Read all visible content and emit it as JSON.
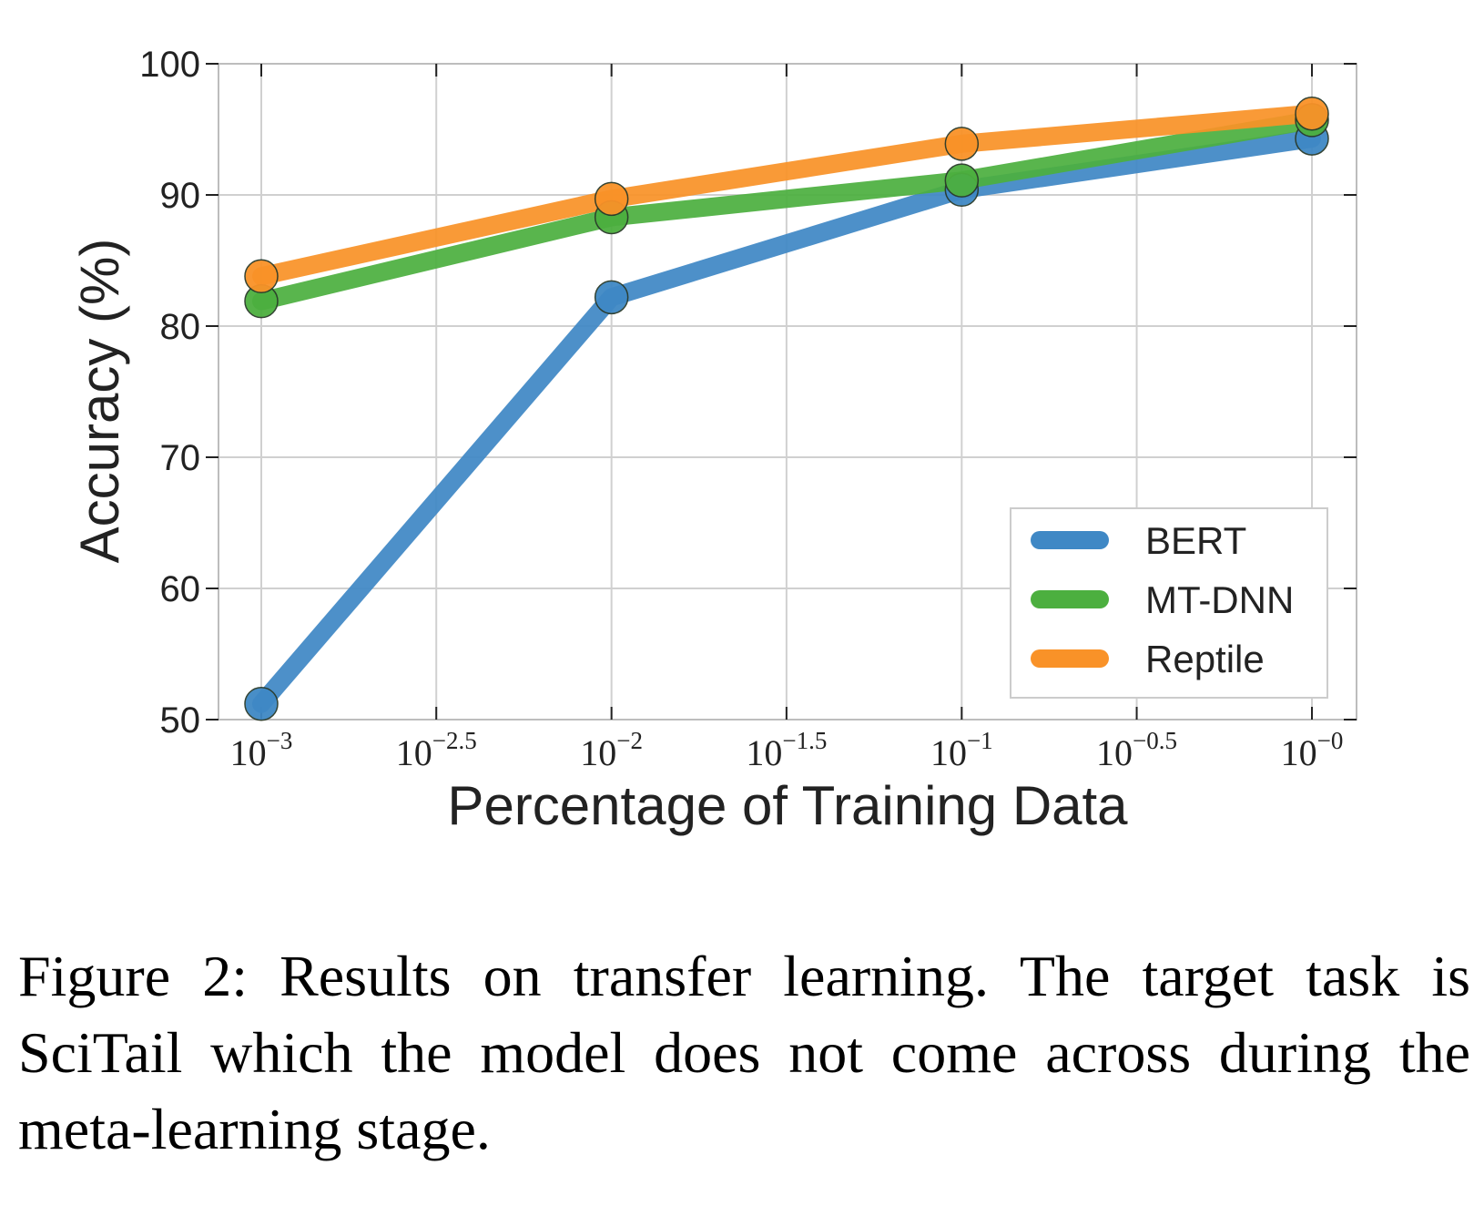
{
  "chart_data": {
    "type": "line",
    "xlabel": "Percentage of Training Data",
    "ylabel": "Accuracy (%)",
    "x_scale": "log10",
    "x_tick_labels": [
      {
        "base": "10",
        "exp": "−3"
      },
      {
        "base": "10",
        "exp": "−2.5"
      },
      {
        "base": "10",
        "exp": "−2"
      },
      {
        "base": "10",
        "exp": "−1.5"
      },
      {
        "base": "10",
        "exp": "−1"
      },
      {
        "base": "10",
        "exp": "−0.5"
      },
      {
        "base": "10",
        "exp": "−0"
      }
    ],
    "x_tick_values": [
      0.001,
      0.00316,
      0.01,
      0.0316,
      0.1,
      0.316,
      1.0
    ],
    "x": [
      0.001,
      0.01,
      0.1,
      1.0
    ],
    "ylim": [
      50,
      100
    ],
    "y_ticks": [
      "50",
      "60",
      "70",
      "80",
      "90",
      "100"
    ],
    "grid": true,
    "legend_position": "bottom-right",
    "series": [
      {
        "name": "BERT",
        "color": "#3f88c5",
        "values": [
          51.2,
          82.2,
          90.4,
          94.3
        ]
      },
      {
        "name": "MT-DNN",
        "color": "#4caf3f",
        "values": [
          81.9,
          88.3,
          91.1,
          95.7
        ]
      },
      {
        "name": "Reptile",
        "color": "#f99228",
        "values": [
          83.8,
          89.7,
          93.9,
          96.2
        ]
      }
    ]
  },
  "caption": {
    "text": "Figure 2:  Results on transfer learning. The target task is SciTail which the model does not come across during the meta-learning stage."
  }
}
